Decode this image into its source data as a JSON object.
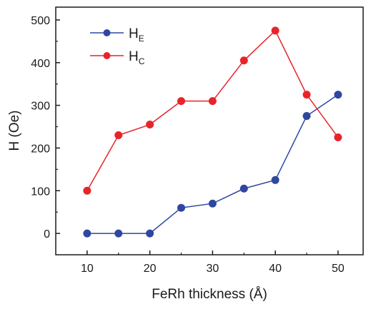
{
  "chart_data": {
    "type": "line",
    "xlabel": "FeRh thickness  (Å)",
    "ylabel": "H (Oe)",
    "xlim": [
      5,
      54
    ],
    "ylim": [
      -50,
      530
    ],
    "x_ticks": [
      10,
      20,
      30,
      40,
      50
    ],
    "y_ticks": [
      0,
      100,
      200,
      300,
      400,
      500
    ],
    "x_tick_labels": [
      "10",
      "20",
      "30",
      "40",
      "50"
    ],
    "y_tick_labels": [
      "0",
      "100",
      "200",
      "300",
      "400",
      "500"
    ],
    "x": [
      10,
      15,
      20,
      25,
      30,
      35,
      40,
      45,
      50
    ],
    "series": [
      {
        "name": "H",
        "subscript": "E",
        "color": "#2e47a0",
        "values": [
          0,
          0,
          0,
          60,
          70,
          105,
          125,
          275,
          325
        ]
      },
      {
        "name": "H",
        "subscript": "C",
        "color": "#e8242a",
        "values": [
          100,
          230,
          255,
          310,
          310,
          405,
          475,
          325,
          225
        ]
      }
    ],
    "legend_position": "top-left",
    "grid": false
  }
}
